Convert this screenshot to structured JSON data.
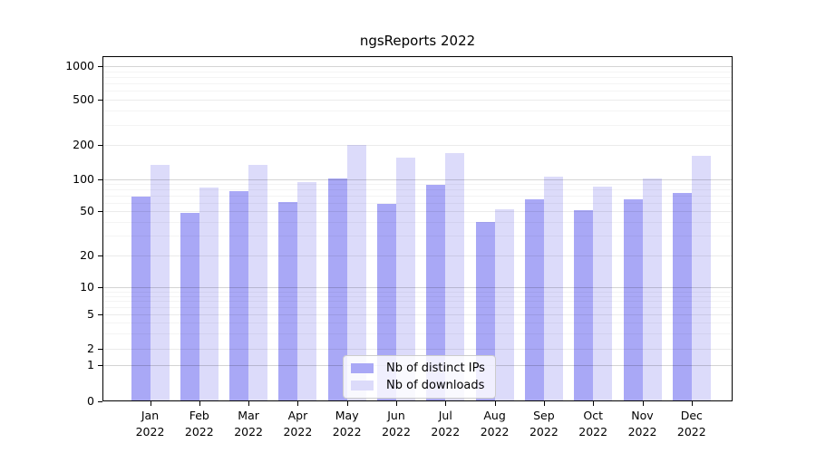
{
  "title": "ngsReports 2022",
  "chart_data": {
    "type": "bar",
    "title": "ngsReports 2022",
    "x_categories": [
      "Jan 2022",
      "Feb 2022",
      "Mar 2022",
      "Apr 2022",
      "May 2022",
      "Jun 2022",
      "Jul 2022",
      "Aug 2022",
      "Sep 2022",
      "Oct 2022",
      "Nov 2022",
      "Dec 2022"
    ],
    "series": [
      {
        "name": "Nb of distinct IPs",
        "color": "#a9a8f6",
        "values": [
          69,
          48,
          78,
          61,
          102,
          59,
          88,
          40,
          65,
          51,
          65,
          75
        ]
      },
      {
        "name": "Nb of downloads",
        "color": "#dcdbfa",
        "values": [
          134,
          84,
          134,
          95,
          201,
          155,
          170,
          52,
          106,
          85,
          102,
          161
        ]
      }
    ],
    "y_scale": "log-like (symlog with 0 baseline)",
    "y_ticks": [
      0,
      1,
      2,
      5,
      10,
      20,
      50,
      100,
      200,
      500,
      1000
    ],
    "y_minor_gridlines": [
      3,
      4,
      6,
      7,
      8,
      9,
      30,
      40,
      60,
      70,
      80,
      90,
      300,
      400,
      600,
      700,
      800,
      900
    ],
    "xlabel": "",
    "ylabel": "",
    "grid": "horizontal gridlines, drawn over bars",
    "legend_position": "lower center, inside plot",
    "axis_color": "#000000",
    "background_color": "#ffffff"
  }
}
